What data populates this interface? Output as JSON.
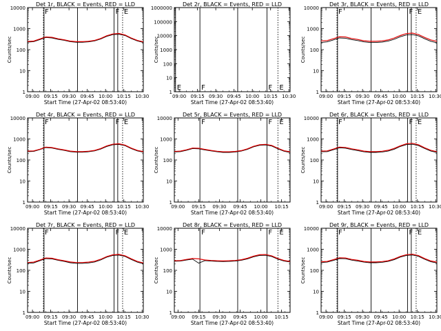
{
  "chart_data": [
    {
      "type": "line",
      "title": "Det 1r, BLACK = Events, RED = LLD",
      "xlabel": "Start Time (27-Apr-02 08:53:40)",
      "ylabel": "Counts/sec",
      "y_scale": "log",
      "ylim": [
        1,
        10000
      ],
      "ytick_labels": [
        "1",
        "10",
        "100",
        "1000",
        "10000"
      ],
      "xlim": [
        0,
        95
      ],
      "xtick_labels": [
        "09:00",
        "09:15",
        "09:30",
        "09:45",
        "10:00",
        "10:15",
        "10:30"
      ],
      "markers": [
        {
          "x": 13,
          "label": "F",
          "style": "dotted"
        },
        {
          "x": 13.5,
          "label": "",
          "style": "solid"
        },
        {
          "x": 41,
          "label": "",
          "style": "solid"
        },
        {
          "x": 71,
          "label": "F",
          "style": "solid"
        },
        {
          "x": 74,
          "label": "",
          "style": "solid"
        },
        {
          "x": 78,
          "label": "E",
          "style": "dotted"
        }
      ],
      "x": [
        0,
        5,
        10,
        15,
        20,
        25,
        30,
        35,
        40,
        45,
        50,
        55,
        60,
        65,
        70,
        75,
        80,
        85,
        90,
        95
      ],
      "series": [
        {
          "name": "BLACK = Events",
          "color": "#000000",
          "values": [
            230,
            240,
            300,
            380,
            360,
            310,
            280,
            240,
            225,
            225,
            235,
            260,
            320,
            430,
            520,
            540,
            470,
            340,
            260,
            220
          ]
        },
        {
          "name": "RED = LLD",
          "color": "#e00000",
          "values": [
            245,
            255,
            320,
            400,
            385,
            330,
            295,
            255,
            240,
            240,
            250,
            275,
            340,
            460,
            560,
            590,
            500,
            360,
            275,
            235
          ]
        }
      ]
    },
    {
      "type": "line",
      "title": "Det 2r, BLACK = Events, RED = LLD",
      "xlabel": "Start Time (27-Apr-02 08:53:40)",
      "ylabel": "Counts/sec",
      "y_scale": "log",
      "ylim": [
        1,
        1000000
      ],
      "ytick_labels": [
        "1",
        "10",
        "100",
        "1000",
        "10000",
        "100000",
        "1000000"
      ],
      "xlim": [
        0,
        95
      ],
      "xtick_labels": [
        "09:00",
        "09:15",
        "09:30",
        "09:45",
        "10:00",
        "10:15",
        "10:30"
      ],
      "markers": [
        {
          "x": 1,
          "label": "E",
          "style": "solid"
        },
        {
          "x": 21,
          "label": "F",
          "style": "solid"
        },
        {
          "x": 52,
          "label": "",
          "style": "solid"
        },
        {
          "x": 76,
          "label": "F",
          "style": "solid"
        },
        {
          "x": 85,
          "label": "E",
          "style": "dotted"
        }
      ],
      "x": [],
      "series": []
    },
    {
      "type": "line",
      "title": "Det 3r, BLACK = Events, RED = LLD",
      "xlabel": "Start Time (27-Apr-02 08:53:40)",
      "ylabel": "Counts/sec",
      "y_scale": "log",
      "ylim": [
        1,
        10000
      ],
      "ytick_labels": [
        "1",
        "10",
        "100",
        "1000",
        "10000"
      ],
      "xlim": [
        0,
        95
      ],
      "xtick_labels": [
        "09:00",
        "09:15",
        "09:30",
        "09:45",
        "10:00",
        "10:15",
        "10:30"
      ],
      "markers": [
        {
          "x": 13,
          "label": "F",
          "style": "dotted"
        },
        {
          "x": 13.5,
          "label": "",
          "style": "solid"
        },
        {
          "x": 41,
          "label": "",
          "style": "solid"
        },
        {
          "x": 71,
          "label": "F",
          "style": "solid"
        },
        {
          "x": 74,
          "label": "",
          "style": "solid"
        },
        {
          "x": 78,
          "label": "E",
          "style": "dotted"
        }
      ],
      "x": [
        0,
        5,
        10,
        15,
        20,
        25,
        30,
        35,
        40,
        45,
        50,
        55,
        60,
        65,
        70,
        75,
        80,
        85,
        90,
        95
      ],
      "series": [
        {
          "name": "BLACK = Events",
          "color": "#000000",
          "values": [
            220,
            235,
            290,
            360,
            350,
            300,
            270,
            235,
            220,
            220,
            230,
            255,
            310,
            410,
            500,
            520,
            450,
            330,
            250,
            215
          ]
        },
        {
          "name": "RED = LLD",
          "color": "#e00000",
          "values": [
            260,
            270,
            330,
            410,
            400,
            340,
            305,
            265,
            250,
            250,
            260,
            290,
            355,
            470,
            580,
            610,
            520,
            380,
            290,
            250
          ]
        }
      ]
    },
    {
      "type": "line",
      "title": "Det 4r, BLACK = Events, RED = LLD",
      "xlabel": "Start Time (27-Apr-02 08:53:40)",
      "ylabel": "Counts/sec",
      "y_scale": "log",
      "ylim": [
        1,
        10000
      ],
      "ytick_labels": [
        "1",
        "10",
        "100",
        "1000",
        "10000"
      ],
      "xlim": [
        0,
        95
      ],
      "xtick_labels": [
        "09:00",
        "09:15",
        "09:30",
        "09:45",
        "10:00",
        "10:15",
        "10:30"
      ],
      "markers": [
        {
          "x": 13,
          "label": "F",
          "style": "dotted"
        },
        {
          "x": 13.5,
          "label": "",
          "style": "solid"
        },
        {
          "x": 41,
          "label": "",
          "style": "solid"
        },
        {
          "x": 71,
          "label": "F",
          "style": "solid"
        },
        {
          "x": 74,
          "label": "",
          "style": "solid"
        },
        {
          "x": 78,
          "label": "E",
          "style": "dotted"
        }
      ],
      "x": [
        0,
        5,
        10,
        15,
        20,
        25,
        30,
        35,
        40,
        45,
        50,
        55,
        60,
        65,
        70,
        75,
        80,
        85,
        90,
        95
      ],
      "series": [
        {
          "name": "BLACK = Events",
          "color": "#000000",
          "values": [
            250,
            255,
            310,
            390,
            370,
            320,
            285,
            250,
            235,
            235,
            245,
            270,
            330,
            440,
            530,
            550,
            480,
            350,
            270,
            235
          ]
        },
        {
          "name": "RED = LLD",
          "color": "#e00000",
          "values": [
            265,
            270,
            325,
            410,
            390,
            340,
            300,
            265,
            250,
            250,
            260,
            285,
            350,
            465,
            565,
            590,
            510,
            370,
            285,
            250
          ]
        }
      ]
    },
    {
      "type": "line",
      "title": "Det 5r, BLACK = Events, RED = LLD",
      "xlabel": "Start Time (27-Apr-02 08:53:40)",
      "ylabel": "Counts/sec",
      "y_scale": "log",
      "ylim": [
        1,
        10000
      ],
      "ytick_labels": [
        "1",
        "10",
        "100",
        "1000",
        "10000"
      ],
      "xlim": [
        0,
        95
      ],
      "xtick_labels": [
        "09:00",
        "09:15",
        "09:30",
        "09:45",
        "10:00",
        "10:15"
      ],
      "markers": [
        {
          "x": 21,
          "label": "F",
          "style": "solid"
        },
        {
          "x": 52,
          "label": "",
          "style": "solid"
        },
        {
          "x": 76,
          "label": "F",
          "style": "solid"
        },
        {
          "x": 85,
          "label": "E",
          "style": "dotted"
        }
      ],
      "x": [
        0,
        5,
        10,
        15,
        20,
        25,
        30,
        35,
        40,
        45,
        50,
        55,
        60,
        65,
        70,
        75,
        80,
        85,
        90,
        95
      ],
      "series": [
        {
          "name": "BLACK = Events",
          "color": "#000000",
          "values": [
            240,
            250,
            290,
            350,
            340,
            300,
            270,
            245,
            230,
            230,
            240,
            265,
            320,
            420,
            500,
            520,
            460,
            340,
            260,
            230
          ]
        },
        {
          "name": "RED = LLD",
          "color": "#e00000",
          "values": [
            255,
            265,
            305,
            370,
            360,
            320,
            285,
            260,
            245,
            245,
            255,
            280,
            340,
            445,
            530,
            555,
            490,
            360,
            275,
            245
          ]
        }
      ]
    },
    {
      "type": "line",
      "title": "Det 6r, BLACK = Events, RED = LLD",
      "xlabel": "Start Time (27-Apr-02 08:53:40)",
      "ylabel": "Counts/sec",
      "y_scale": "log",
      "ylim": [
        1,
        10000
      ],
      "ytick_labels": [
        "1",
        "10",
        "100",
        "1000",
        "10000"
      ],
      "xlim": [
        0,
        95
      ],
      "xtick_labels": [
        "09:00",
        "09:15",
        "09:30",
        "09:45",
        "10:00",
        "10:15",
        "10:30"
      ],
      "markers": [
        {
          "x": 13,
          "label": "F",
          "style": "dotted"
        },
        {
          "x": 13.5,
          "label": "",
          "style": "solid"
        },
        {
          "x": 41,
          "label": "",
          "style": "solid"
        },
        {
          "x": 71,
          "label": "F",
          "style": "solid"
        },
        {
          "x": 74,
          "label": "",
          "style": "solid"
        },
        {
          "x": 78,
          "label": "E",
          "style": "dotted"
        }
      ],
      "x": [
        0,
        5,
        10,
        15,
        20,
        25,
        30,
        35,
        40,
        45,
        50,
        55,
        60,
        65,
        70,
        75,
        80,
        85,
        90,
        95
      ],
      "series": [
        {
          "name": "BLACK = Events",
          "color": "#000000",
          "values": [
            245,
            250,
            305,
            380,
            365,
            315,
            280,
            245,
            230,
            230,
            240,
            265,
            325,
            440,
            540,
            560,
            480,
            350,
            265,
            230
          ]
        },
        {
          "name": "RED = LLD",
          "color": "#e00000",
          "values": [
            265,
            270,
            330,
            410,
            395,
            340,
            305,
            265,
            250,
            250,
            260,
            290,
            355,
            475,
            590,
            620,
            525,
            380,
            290,
            250
          ]
        }
      ]
    },
    {
      "type": "line",
      "title": "Det 7r, BLACK = Events, RED = LLD",
      "xlabel": "Start Time (27-Apr-02 08:53:40)",
      "ylabel": "Counts/sec",
      "y_scale": "log",
      "ylim": [
        1,
        10000
      ],
      "ytick_labels": [
        "1",
        "10",
        "100",
        "1000",
        "10000"
      ],
      "xlim": [
        0,
        95
      ],
      "xtick_labels": [
        "09:00",
        "09:15",
        "09:30",
        "09:45",
        "10:00",
        "10:15",
        "10:30"
      ],
      "markers": [
        {
          "x": 13,
          "label": "F",
          "style": "dotted"
        },
        {
          "x": 13.5,
          "label": "",
          "style": "solid"
        },
        {
          "x": 41,
          "label": "",
          "style": "solid"
        },
        {
          "x": 71,
          "label": "F",
          "style": "solid"
        },
        {
          "x": 74,
          "label": "",
          "style": "solid"
        },
        {
          "x": 78,
          "label": "E",
          "style": "dotted"
        }
      ],
      "x": [
        0,
        5,
        10,
        15,
        20,
        25,
        30,
        35,
        40,
        45,
        50,
        55,
        60,
        65,
        70,
        75,
        80,
        85,
        90,
        95
      ],
      "series": [
        {
          "name": "BLACK = Events",
          "color": "#000000",
          "values": [
            215,
            225,
            285,
            360,
            350,
            300,
            265,
            230,
            215,
            215,
            225,
            250,
            310,
            420,
            510,
            530,
            455,
            330,
            245,
            205
          ]
        },
        {
          "name": "RED = LLD",
          "color": "#e00000",
          "values": [
            235,
            245,
            305,
            385,
            375,
            320,
            285,
            250,
            235,
            235,
            245,
            270,
            335,
            450,
            545,
            570,
            490,
            355,
            265,
            225
          ]
        }
      ]
    },
    {
      "type": "line",
      "title": "Det 8r, BLACK = Events, RED = LLD",
      "xlabel": "Start Time (27-Apr-02 08:53:40)",
      "ylabel": "Counts/sec",
      "y_scale": "log",
      "ylim": [
        1,
        10000
      ],
      "ytick_labels": [
        "1",
        "10",
        "100",
        "1000",
        "10000"
      ],
      "xlim": [
        0,
        95
      ],
      "xtick_labels": [
        "09:00",
        "09:15",
        "09:30",
        "09:45",
        "10:00",
        "10:15"
      ],
      "markers": [
        {
          "x": 21,
          "label": "F",
          "style": "solid"
        },
        {
          "x": 52,
          "label": "",
          "style": "solid"
        },
        {
          "x": 76,
          "label": "F",
          "style": "solid"
        },
        {
          "x": 85,
          "label": "E",
          "style": "dotted"
        }
      ],
      "x": [
        0,
        5,
        10,
        15,
        20,
        25,
        30,
        35,
        40,
        45,
        50,
        55,
        60,
        65,
        70,
        75,
        80,
        85,
        90,
        95
      ],
      "series": [
        {
          "name": "BLACK = Events",
          "color": "#000000",
          "values": [
            270,
            275,
            310,
            340,
            220,
            290,
            275,
            265,
            260,
            265,
            275,
            300,
            350,
            440,
            510,
            520,
            450,
            340,
            275,
            250
          ]
        },
        {
          "name": "RED = LLD",
          "color": "#e00000",
          "values": [
            285,
            290,
            330,
            365,
            350,
            310,
            295,
            285,
            280,
            285,
            295,
            320,
            375,
            470,
            550,
            565,
            485,
            365,
            295,
            265
          ]
        }
      ]
    },
    {
      "type": "line",
      "title": "Det 9r, BLACK = Events, RED = LLD",
      "xlabel": "Start Time (27-Apr-02 08:53:40)",
      "ylabel": "Counts/sec",
      "y_scale": "log",
      "ylim": [
        1,
        10000
      ],
      "ytick_labels": [
        "1",
        "10",
        "100",
        "1000",
        "10000"
      ],
      "xlim": [
        0,
        95
      ],
      "xtick_labels": [
        "09:00",
        "09:15",
        "09:30",
        "09:45",
        "10:00",
        "10:15",
        "10:30"
      ],
      "markers": [
        {
          "x": 13,
          "label": "F",
          "style": "dotted"
        },
        {
          "x": 13.5,
          "label": "",
          "style": "solid"
        },
        {
          "x": 41,
          "label": "",
          "style": "solid"
        },
        {
          "x": 71,
          "label": "F",
          "style": "solid"
        },
        {
          "x": 74,
          "label": "",
          "style": "solid"
        },
        {
          "x": 78,
          "label": "E",
          "style": "dotted"
        }
      ],
      "x": [
        0,
        5,
        10,
        15,
        20,
        25,
        30,
        35,
        40,
        45,
        50,
        55,
        60,
        65,
        70,
        75,
        80,
        85,
        90,
        95
      ],
      "series": [
        {
          "name": "BLACK = Events",
          "color": "#000000",
          "values": [
            235,
            245,
            295,
            365,
            355,
            305,
            275,
            245,
            230,
            230,
            240,
            265,
            320,
            425,
            510,
            535,
            460,
            335,
            255,
            225
          ]
        },
        {
          "name": "RED = LLD",
          "color": "#e00000",
          "values": [
            255,
            265,
            320,
            395,
            385,
            330,
            300,
            265,
            250,
            250,
            260,
            285,
            350,
            460,
            555,
            585,
            500,
            365,
            280,
            245
          ]
        }
      ]
    }
  ]
}
